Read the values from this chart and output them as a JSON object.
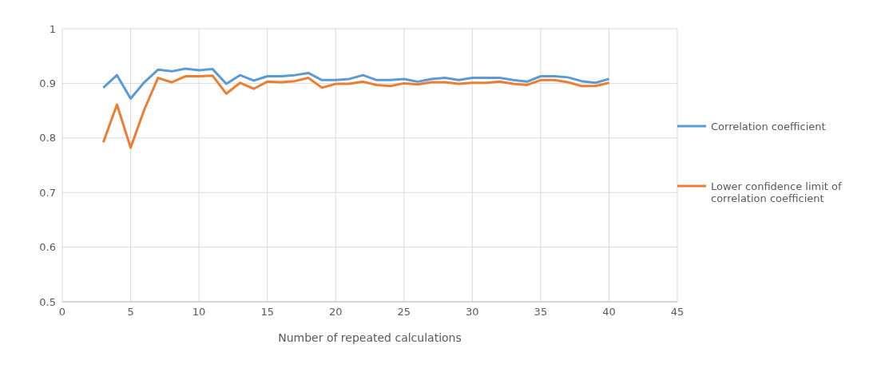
{
  "chart_data": {
    "type": "line",
    "xlabel": "Number of repeated calculations",
    "x": [
      3,
      4,
      5,
      6,
      7,
      8,
      9,
      10,
      11,
      12,
      13,
      14,
      15,
      16,
      17,
      18,
      19,
      20,
      21,
      22,
      23,
      24,
      25,
      26,
      27,
      28,
      29,
      30,
      31,
      32,
      33,
      34,
      35,
      36,
      37,
      38,
      39,
      40
    ],
    "series": [
      {
        "name": "Correlation coefficient",
        "color": "#5b9bd5",
        "values": [
          0.892,
          0.915,
          0.872,
          0.902,
          0.925,
          0.922,
          0.927,
          0.924,
          0.926,
          0.899,
          0.915,
          0.905,
          0.913,
          0.913,
          0.915,
          0.919,
          0.906,
          0.906,
          0.908,
          0.915,
          0.906,
          0.906,
          0.908,
          0.903,
          0.908,
          0.91,
          0.906,
          0.91,
          0.91,
          0.91,
          0.906,
          0.903,
          0.913,
          0.913,
          0.911,
          0.904,
          0.901,
          0.908
        ]
      },
      {
        "name": "Lower confidence limit of correlation coefficient",
        "color": "#ed7d31",
        "values": [
          0.792,
          0.861,
          0.782,
          0.852,
          0.91,
          0.902,
          0.913,
          0.913,
          0.914,
          0.881,
          0.901,
          0.89,
          0.903,
          0.902,
          0.904,
          0.91,
          0.892,
          0.899,
          0.899,
          0.903,
          0.897,
          0.895,
          0.9,
          0.898,
          0.902,
          0.902,
          0.899,
          0.901,
          0.901,
          0.903,
          0.899,
          0.897,
          0.906,
          0.906,
          0.902,
          0.895,
          0.895,
          0.901
        ]
      }
    ],
    "xlim": [
      0,
      45
    ],
    "xticks": [
      0,
      5,
      10,
      15,
      20,
      25,
      30,
      35,
      40,
      45
    ],
    "ylim": [
      0.5,
      1
    ],
    "yticks": [
      0.5,
      0.6,
      0.7,
      0.8,
      0.9,
      1
    ],
    "grid": true,
    "legend": "right",
    "marker": "none",
    "line_style": "solid"
  }
}
